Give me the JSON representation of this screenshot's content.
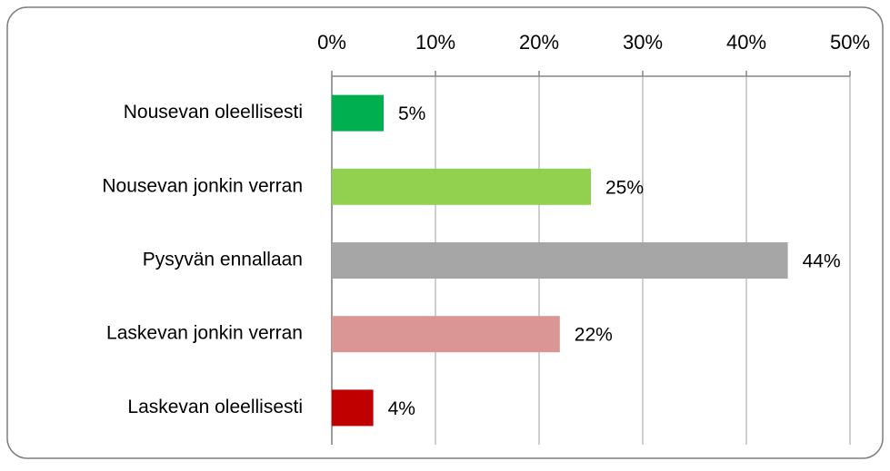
{
  "chart_data": {
    "type": "bar",
    "orientation": "horizontal",
    "categories": [
      "Nousevan oleellisesti",
      "Nousevan jonkin verran",
      "Pysyvän ennallaan",
      "Laskevan jonkin verran",
      "Laskevan oleellisesti"
    ],
    "values": [
      5,
      25,
      44,
      22,
      4
    ],
    "value_labels": [
      "5%",
      "25%",
      "44%",
      "22%",
      "4%"
    ],
    "colors": [
      "#00b050",
      "#92d050",
      "#a6a6a6",
      "#d99694",
      "#c00000"
    ],
    "xlim": [
      0,
      50
    ],
    "xticks": [
      {
        "value": 0,
        "label": "0%"
      },
      {
        "value": 10,
        "label": "10%"
      },
      {
        "value": 20,
        "label": "20%"
      },
      {
        "value": 30,
        "label": "30%"
      },
      {
        "value": 40,
        "label": "40%"
      },
      {
        "value": 50,
        "label": "50%"
      }
    ],
    "grid": true
  }
}
